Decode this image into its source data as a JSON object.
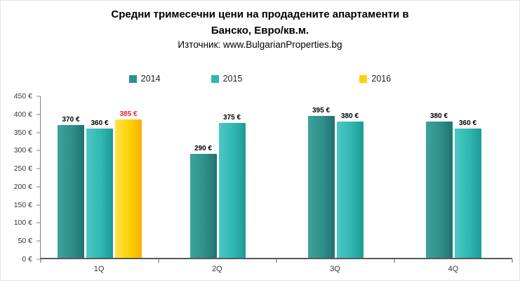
{
  "header": {
    "title": "Средни тримесечни цени на продадените апартаменти в\nБанско, Евро/кв.м.",
    "subtitle": "Източник: www.BulgarianProperties.bg"
  },
  "chart_data": {
    "type": "bar",
    "title": "Средни тримесечни цени на продадените апартаменти в Банско, Евро/кв.м.",
    "subtitle": "Източник: www.BulgarianProperties.bg",
    "categories": [
      "1Q",
      "2Q",
      "3Q",
      "4Q"
    ],
    "series": [
      {
        "name": "2014",
        "color": "#2f8f8a",
        "color_light": "#3da29c",
        "color_dark": "#20736f",
        "label_color": "#000000",
        "values": [
          370,
          290,
          395,
          380
        ]
      },
      {
        "name": "2015",
        "color": "#2fb7b2",
        "color_light": "#4cc8c3",
        "color_dark": "#1c9a95",
        "label_color": "#000000",
        "values": [
          360,
          375,
          380,
          360
        ]
      },
      {
        "name": "2016",
        "color": "#ffd100",
        "color_light": "#ffe34d",
        "color_dark": "#f9af00",
        "label_color": "#ec1c2e",
        "values": [
          385,
          null,
          null,
          null
        ]
      }
    ],
    "value_suffix": " €",
    "ytick_suffix": " €",
    "ylim": [
      0,
      450
    ],
    "ytick_step": 50,
    "legend_position": "top",
    "grid": false
  }
}
